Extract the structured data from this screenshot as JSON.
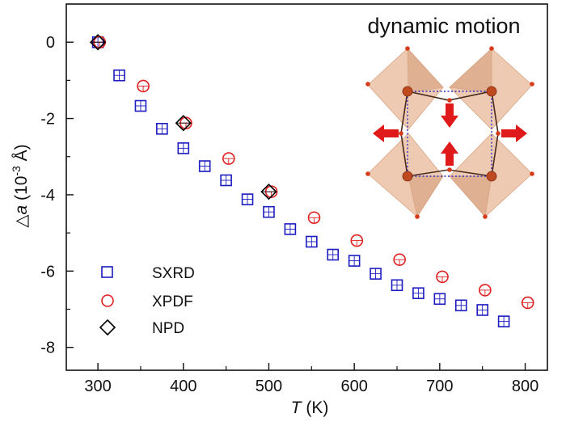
{
  "chart_data": {
    "type": "scatter",
    "title": "",
    "xlabel": {
      "italic": "T",
      "rest": " (K)"
    },
    "ylabel": {
      "prefix": "△",
      "italic": "a",
      "unit_open": " (10",
      "exponent": "-3",
      "unit_close": " Å)"
    },
    "xlim": [
      263,
      826
    ],
    "ylim": [
      -8.6,
      1.0
    ],
    "x_ticks": [
      300,
      400,
      500,
      600,
      700,
      800
    ],
    "x_tick_labels": [
      "300",
      "400",
      "500",
      "600",
      "700",
      "800"
    ],
    "y_ticks": [
      0,
      -2,
      -4,
      -6,
      -8
    ],
    "y_tick_labels": [
      "0",
      "-2",
      "-4",
      "-6",
      "-8"
    ],
    "legend_position": "bottom-left",
    "series": [
      {
        "name": "SXRD",
        "marker": "square",
        "color": "#1c1cc0",
        "points": [
          {
            "x": 300,
            "y": 0.0
          },
          {
            "x": 325,
            "y": -0.87
          },
          {
            "x": 350,
            "y": -1.67
          },
          {
            "x": 375,
            "y": -2.27
          },
          {
            "x": 400,
            "y": -2.78
          },
          {
            "x": 425,
            "y": -3.25
          },
          {
            "x": 450,
            "y": -3.62
          },
          {
            "x": 475,
            "y": -4.12
          },
          {
            "x": 500,
            "y": -4.45
          },
          {
            "x": 525,
            "y": -4.9
          },
          {
            "x": 550,
            "y": -5.23
          },
          {
            "x": 575,
            "y": -5.57
          },
          {
            "x": 600,
            "y": -5.73
          },
          {
            "x": 625,
            "y": -6.07
          },
          {
            "x": 650,
            "y": -6.37
          },
          {
            "x": 675,
            "y": -6.58
          },
          {
            "x": 700,
            "y": -6.73
          },
          {
            "x": 725,
            "y": -6.9
          },
          {
            "x": 750,
            "y": -7.02
          },
          {
            "x": 775,
            "y": -7.32
          }
        ]
      },
      {
        "name": "XPDF",
        "marker": "circle",
        "color": "#e02020",
        "points": [
          {
            "x": 302,
            "y": 0.0
          },
          {
            "x": 353,
            "y": -1.15
          },
          {
            "x": 403,
            "y": -2.12
          },
          {
            "x": 453,
            "y": -3.05
          },
          {
            "x": 503,
            "y": -3.92
          },
          {
            "x": 553,
            "y": -4.6
          },
          {
            "x": 603,
            "y": -5.2
          },
          {
            "x": 653,
            "y": -5.7
          },
          {
            "x": 703,
            "y": -6.15
          },
          {
            "x": 753,
            "y": -6.5
          },
          {
            "x": 803,
            "y": -6.83
          }
        ]
      },
      {
        "name": "NPD",
        "marker": "diamond",
        "color": "#000000",
        "points": [
          {
            "x": 300,
            "y": 0.0
          },
          {
            "x": 400,
            "y": -2.12
          },
          {
            "x": 500,
            "y": -3.92
          }
        ]
      }
    ]
  },
  "inset": {
    "title": "dynamic motion",
    "colors": {
      "octahedron": "#e8b898",
      "atom": "#d63a1a",
      "center_atom": "#c04a20",
      "arrow": "#e01a1a",
      "box": "#3030c0"
    }
  }
}
